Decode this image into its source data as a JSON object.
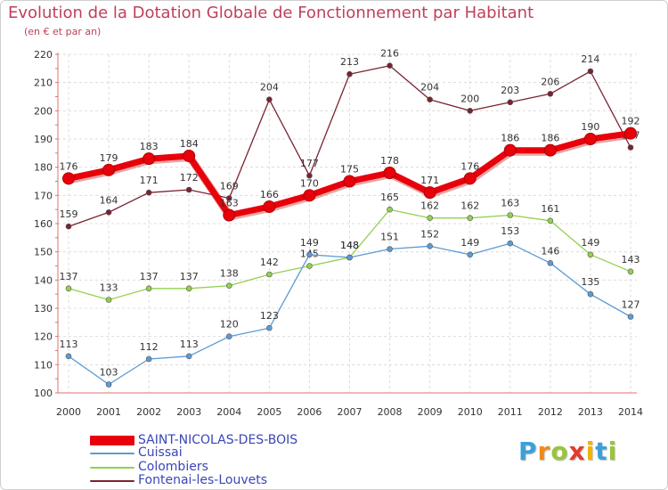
{
  "chart_data": {
    "type": "line",
    "title": "Evolution de la Dotation Globale de Fonctionnement par Habitant",
    "subtitle": "(en € et par an)",
    "x": [
      2000,
      2001,
      2002,
      2003,
      2004,
      2005,
      2006,
      2007,
      2008,
      2009,
      2010,
      2011,
      2012,
      2013,
      2014
    ],
    "ylim": [
      100,
      220
    ],
    "yticks": [
      100,
      110,
      120,
      130,
      140,
      150,
      160,
      170,
      180,
      190,
      200,
      210,
      220
    ],
    "grid": true,
    "legend_position": "bottom-left",
    "series": [
      {
        "name": "SAINT-NICOLAS-DES-BOIS",
        "color": "#e8000b",
        "values": [
          176,
          179,
          183,
          184,
          163,
          166,
          170,
          175,
          178,
          171,
          176,
          186,
          186,
          190,
          192
        ]
      },
      {
        "name": "Cuissai",
        "color": "#5b9bd5",
        "values": [
          113,
          103,
          112,
          113,
          120,
          123,
          149,
          148,
          151,
          152,
          149,
          153,
          146,
          135,
          127
        ]
      },
      {
        "name": "Colombiers",
        "color": "#92d050",
        "values": [
          137,
          133,
          137,
          137,
          138,
          142,
          145,
          148,
          165,
          162,
          162,
          163,
          161,
          149,
          143
        ]
      },
      {
        "name": "Fontenai-les-Louvets",
        "color": "#7b2230",
        "values": [
          159,
          164,
          171,
          172,
          169,
          204,
          177,
          213,
          216,
          204,
          200,
          203,
          206,
          214,
          187
        ]
      }
    ]
  },
  "logo": {
    "letters": [
      "P",
      "r",
      "o",
      "x",
      "i",
      "t",
      "i"
    ],
    "colors": [
      "#3aa0d8",
      "#f08a1c",
      "#9ac43a",
      "#e23b2e",
      "#f0b400",
      "#3aa0d8",
      "#9ac43a"
    ]
  }
}
